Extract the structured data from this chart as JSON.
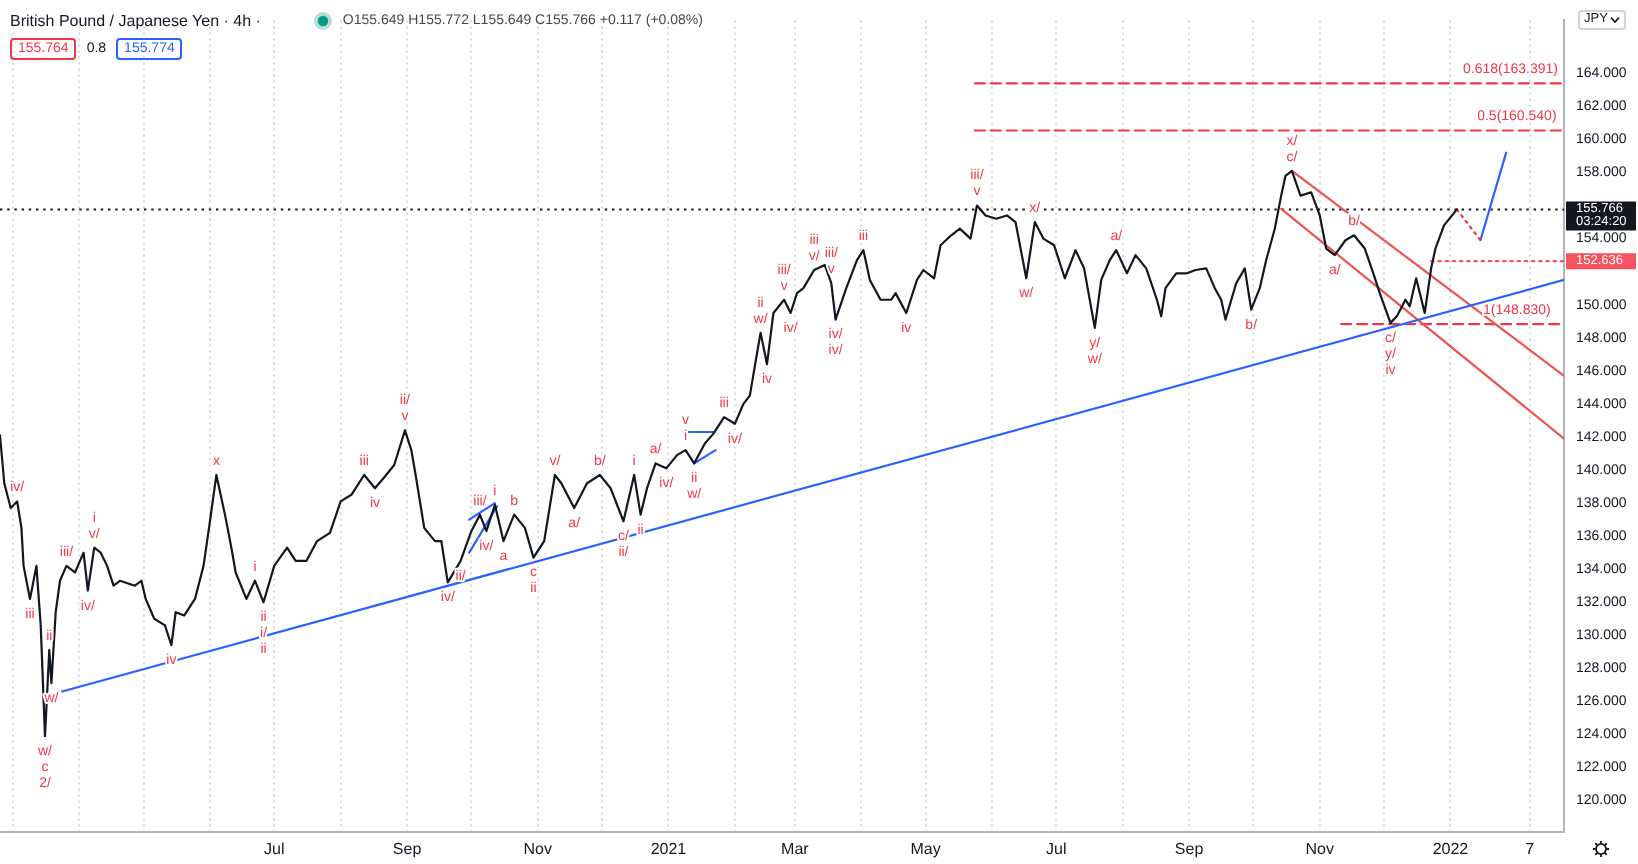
{
  "chart_data": {
    "type": "line",
    "title": "British Pound / Japanese Yen · 4h ·",
    "subtitle": "O155.649 H155.772 L155.649 C155.766 +0.117 (+0.08%)",
    "ylabel": "JPY",
    "grid": "x",
    "xlim": [
      "2020-02-24",
      "2022-02-23"
    ],
    "ylim": [
      118.1,
      167.2
    ],
    "xticks": [
      {
        "value": "2020-03-01",
        "label": null
      },
      {
        "value": "2020-04-01",
        "label": null
      },
      {
        "value": "2020-05-01",
        "label": null
      },
      {
        "value": "2020-06-01",
        "label": null
      },
      {
        "value": "2020-07-01",
        "label": "Jul"
      },
      {
        "value": "2020-08-01",
        "label": null
      },
      {
        "value": "2020-09-01",
        "label": "Sep"
      },
      {
        "value": "2020-10-01",
        "label": null
      },
      {
        "value": "2020-11-01",
        "label": "Nov"
      },
      {
        "value": "2020-12-01",
        "label": null
      },
      {
        "value": "2021-01-01",
        "label": "2021"
      },
      {
        "value": "2021-02-01",
        "label": null
      },
      {
        "value": "2021-03-01",
        "label": "Mar"
      },
      {
        "value": "2021-04-01",
        "label": null
      },
      {
        "value": "2021-05-01",
        "label": "May"
      },
      {
        "value": "2021-06-01",
        "label": null
      },
      {
        "value": "2021-07-01",
        "label": "Jul"
      },
      {
        "value": "2021-08-01",
        "label": null
      },
      {
        "value": "2021-09-01",
        "label": "Sep"
      },
      {
        "value": "2021-10-01",
        "label": null
      },
      {
        "value": "2021-11-01",
        "label": "Nov"
      },
      {
        "value": "2021-12-01",
        "label": null
      },
      {
        "value": "2022-01-01",
        "label": "2022"
      },
      {
        "value": "2022-02-07",
        "label": "7"
      }
    ],
    "yticks": [
      {
        "value": 120,
        "label": "120.000"
      },
      {
        "value": 122,
        "label": "122.000"
      },
      {
        "value": 124,
        "label": "124.000"
      },
      {
        "value": 126,
        "label": "126.000"
      },
      {
        "value": 128,
        "label": "128.000"
      },
      {
        "value": 130,
        "label": "130.000"
      },
      {
        "value": 132,
        "label": "132.000"
      },
      {
        "value": 134,
        "label": "134.000"
      },
      {
        "value": 136,
        "label": "136.000"
      },
      {
        "value": 138,
        "label": "138.000"
      },
      {
        "value": 140,
        "label": "140.000"
      },
      {
        "value": 142,
        "label": "142.000"
      },
      {
        "value": 144,
        "label": "144.000"
      },
      {
        "value": 146,
        "label": "146.000"
      },
      {
        "value": 148,
        "label": "148.000"
      },
      {
        "value": 150,
        "label": "150.000"
      },
      {
        "value": 154,
        "label": "154.000"
      },
      {
        "value": 158,
        "label": "158.000"
      },
      {
        "value": 160,
        "label": "160.000"
      },
      {
        "value": 162,
        "label": "162.000"
      },
      {
        "value": 164,
        "label": "164.000"
      }
    ],
    "series": [
      {
        "color": "#131722",
        "x": [
          "2020-02-24",
          "2020-02-26",
          "2020-02-29",
          "2020-03-03",
          "2020-03-05",
          "2020-03-06",
          "2020-03-09",
          "2020-03-12",
          "2020-03-14",
          "2020-03-16",
          "2020-03-18",
          "2020-03-19",
          "2020-03-21",
          "2020-03-23",
          "2020-03-26",
          "2020-03-30",
          "2020-04-03",
          "2020-04-05",
          "2020-04-08",
          "2020-04-11",
          "2020-04-14",
          "2020-04-17",
          "2020-04-20",
          "2020-04-27",
          "2020-04-30",
          "2020-05-02",
          "2020-05-06",
          "2020-05-11",
          "2020-05-14",
          "2020-05-16",
          "2020-05-20",
          "2020-05-25",
          "2020-05-29",
          "2020-06-01",
          "2020-06-04",
          "2020-06-08",
          "2020-06-11",
          "2020-06-13",
          "2020-06-18",
          "2020-06-22",
          "2020-06-26",
          "2020-07-01",
          "2020-07-07",
          "2020-07-11",
          "2020-07-16",
          "2020-07-21",
          "2020-07-27",
          "2020-08-01",
          "2020-08-06",
          "2020-08-12",
          "2020-08-17",
          "2020-08-21",
          "2020-08-26",
          "2020-08-31",
          "2020-09-03",
          "2020-09-05",
          "2020-09-09",
          "2020-09-14",
          "2020-09-17",
          "2020-09-20",
          "2020-09-26",
          "2020-10-01",
          "2020-10-05",
          "2020-10-08",
          "2020-10-12",
          "2020-10-16",
          "2020-10-21",
          "2020-10-26",
          "2020-10-30",
          "2020-11-04",
          "2020-11-09",
          "2020-11-12",
          "2020-11-18",
          "2020-11-24",
          "2020-11-30",
          "2020-12-05",
          "2020-12-11",
          "2020-12-16",
          "2020-12-19",
          "2020-12-22",
          "2020-12-26",
          "2020-12-31",
          "2021-01-05",
          "2021-01-09",
          "2021-01-13",
          "2021-01-18",
          "2021-01-22",
          "2021-01-27",
          "2021-02-01",
          "2021-02-05",
          "2021-02-08",
          "2021-02-11",
          "2021-02-13",
          "2021-02-16",
          "2021-02-19",
          "2021-02-24",
          "2021-02-27",
          "2021-03-02",
          "2021-03-05",
          "2021-03-10",
          "2021-03-15",
          "2021-03-18",
          "2021-03-20",
          "2021-03-25",
          "2021-03-30",
          "2021-04-02",
          "2021-04-05",
          "2021-04-10",
          "2021-04-15",
          "2021-04-17",
          "2021-04-22",
          "2021-04-27",
          "2021-04-30",
          "2021-05-05",
          "2021-05-08",
          "2021-05-13",
          "2021-05-17",
          "2021-05-22",
          "2021-05-25",
          "2021-05-29",
          "2021-06-03",
          "2021-06-08",
          "2021-06-12",
          "2021-06-17",
          "2021-06-21",
          "2021-06-25",
          "2021-06-30",
          "2021-07-05",
          "2021-07-10",
          "2021-07-14",
          "2021-07-19",
          "2021-07-22",
          "2021-07-26",
          "2021-07-29",
          "2021-08-03",
          "2021-08-07",
          "2021-08-12",
          "2021-08-17",
          "2021-08-19",
          "2021-08-21",
          "2021-08-26",
          "2021-08-31",
          "2021-09-04",
          "2021-09-09",
          "2021-09-13",
          "2021-09-16",
          "2021-09-18",
          "2021-09-23",
          "2021-09-27",
          "2021-09-30",
          "2021-10-04",
          "2021-10-07",
          "2021-10-11",
          "2021-10-14",
          "2021-10-16",
          "2021-10-19",
          "2021-10-23",
          "2021-10-28",
          "2021-11-01",
          "2021-11-04",
          "2021-11-08",
          "2021-11-13",
          "2021-11-17",
          "2021-11-22",
          "2021-11-26",
          "2021-11-29",
          "2021-12-04",
          "2021-12-07",
          "2021-12-11",
          "2021-12-13",
          "2021-12-16",
          "2021-12-20",
          "2021-12-23",
          "2021-12-25",
          "2021-12-29",
          "2022-01-04"
        ],
        "values": [
          142.1,
          139.2,
          137.7,
          138.1,
          136.5,
          134.2,
          132.2,
          134.2,
          130.6,
          123.9,
          129.1,
          127.1,
          131.4,
          133.3,
          134.2,
          133.8,
          135.0,
          132.7,
          135.3,
          135.0,
          134.2,
          133.0,
          133.3,
          133.0,
          133.3,
          132.2,
          131.0,
          130.6,
          129.4,
          131.4,
          131.2,
          132.2,
          134.2,
          136.9,
          139.7,
          137.3,
          135.3,
          133.8,
          132.2,
          133.3,
          132.0,
          134.2,
          135.3,
          134.5,
          134.5,
          135.7,
          136.2,
          138.1,
          138.5,
          139.7,
          138.9,
          139.5,
          140.3,
          142.4,
          141.2,
          139.7,
          136.5,
          135.7,
          135.7,
          133.2,
          134.5,
          136.3,
          137.3,
          136.3,
          137.9,
          135.7,
          137.3,
          136.5,
          134.7,
          135.7,
          139.7,
          139.2,
          137.7,
          139.2,
          139.7,
          138.9,
          136.9,
          139.7,
          137.3,
          138.9,
          140.4,
          140.1,
          140.9,
          141.2,
          140.4,
          141.6,
          142.2,
          143.2,
          142.8,
          144.0,
          144.5,
          146.8,
          148.3,
          146.4,
          149.5,
          150.3,
          149.5,
          150.7,
          151.0,
          152.1,
          152.4,
          151.3,
          149.1,
          151.0,
          152.7,
          153.3,
          151.5,
          150.3,
          150.3,
          150.7,
          149.5,
          151.5,
          152.1,
          151.6,
          153.6,
          154.2,
          154.6,
          154.0,
          156.0,
          155.4,
          155.2,
          155.4,
          155.0,
          151.6,
          155.0,
          154.0,
          153.6,
          151.6,
          153.3,
          152.2,
          148.6,
          151.5,
          152.7,
          153.3,
          151.9,
          153.0,
          152.2,
          150.3,
          149.3,
          151.0,
          151.9,
          151.9,
          152.1,
          152.2,
          151.0,
          150.3,
          149.1,
          151.3,
          152.2,
          149.7,
          151.0,
          152.7,
          154.6,
          156.6,
          157.8,
          158.1,
          156.6,
          156.8,
          155.4,
          153.4,
          153.0,
          153.9,
          154.2,
          153.4,
          151.9,
          150.7,
          148.9,
          149.3,
          150.3,
          149.9,
          151.6,
          149.5,
          152.2,
          153.4,
          154.8,
          155.766
        ]
      },
      {
        "color": "#2962ff",
        "x": [
          "2020-03-24",
          "2022-02-23"
        ],
        "values": [
          126.6,
          151.5
        ]
      },
      {
        "color": "#2962ff",
        "x": [
          "2020-09-30",
          "2020-10-12"
        ],
        "values": [
          137.0,
          138.0
        ]
      },
      {
        "color": "#2962ff",
        "x": [
          "2020-09-30",
          "2020-10-13"
        ],
        "values": [
          135.0,
          137.8
        ]
      },
      {
        "color": "#2962ff",
        "x": [
          "2021-01-09",
          "2021-01-22"
        ],
        "values": [
          142.3,
          142.3
        ]
      },
      {
        "color": "#2962ff",
        "x": [
          "2021-01-13",
          "2021-01-23"
        ],
        "values": [
          140.4,
          141.2
        ]
      },
      {
        "color": "#ef5350",
        "x": [
          "2021-10-19",
          "2022-02-23"
        ],
        "values": [
          158.1,
          145.7
        ]
      },
      {
        "color": "#ef5350",
        "x": [
          "2021-10-14",
          "2022-02-23"
        ],
        "values": [
          155.8,
          141.9
        ]
      },
      {
        "color": "#f23645",
        "line_style": "dashed",
        "x": [
          "2021-05-24",
          "2022-02-23"
        ],
        "values": [
          163.391,
          163.391
        ]
      },
      {
        "color": "#f23645",
        "line_style": "dashed",
        "x": [
          "2021-05-24",
          "2022-02-23"
        ],
        "values": [
          160.54,
          160.54
        ]
      },
      {
        "color": "#f23645",
        "line_style": "dashed",
        "x": [
          "2021-11-11",
          "2022-02-23"
        ],
        "values": [
          148.83,
          148.83
        ]
      },
      {
        "color": "#f7525f",
        "line_style": "dotted",
        "x": [
          "2021-12-23",
          "2022-02-23"
        ],
        "values": [
          152.636,
          152.636
        ]
      },
      {
        "color": "#f23645",
        "line_style": "dotted",
        "x": [
          "2022-01-04",
          "2022-01-15"
        ],
        "values": [
          155.766,
          153.9
        ]
      },
      {
        "color": "#2962ff",
        "x": [
          "2022-01-15",
          "2022-01-27"
        ],
        "values": [
          153.9,
          159.2
        ]
      }
    ],
    "ref_lines": [
      {
        "axis": "y",
        "value": 155.766,
        "label": "155.766",
        "color": "#131722",
        "line_style": "dotted"
      }
    ],
    "annotations": [
      "155.764",
      "0.8",
      "155.774",
      "03:24:20",
      {
        "text": "0.618(163.391)",
        "x": "2022-02-01",
        "y": 163.391
      },
      {
        "text": "0.5(160.540)",
        "x": "2022-02-01",
        "y": 160.54
      },
      {
        "text": "1(148.830)",
        "x": "2022-02-01",
        "y": 148.83
      },
      {
        "text": "152.636",
        "x": "2022-02-23",
        "y": 152.636
      },
      {
        "text": "iv/",
        "x": "2020-03-03",
        "y": 138.1
      },
      {
        "text": "iii",
        "x": "2020-03-09",
        "y": 132.2
      },
      {
        "text": "ii",
        "x": "2020-03-18",
        "y": 129.1
      },
      {
        "text": "w/",
        "x": "2020-03-16",
        "y": 123.9
      },
      {
        "text": "c",
        "x": "2020-03-16",
        "y": 123.9
      },
      {
        "text": "2/",
        "x": "2020-03-16",
        "y": 123.9
      },
      {
        "text": "w/",
        "x": "2020-03-19",
        "y": 127.1
      },
      {
        "text": "iii/",
        "x": "2020-03-26",
        "y": 134.2
      },
      {
        "text": "v/",
        "x": "2020-04-08",
        "y": 135.3
      },
      {
        "text": "i",
        "x": "2020-04-08",
        "y": 135.3
      },
      {
        "text": "iv/",
        "x": "2020-04-05",
        "y": 132.7
      },
      {
        "text": "iv",
        "x": "2020-05-14",
        "y": 129.4
      },
      {
        "text": "x",
        "x": "2020-06-04",
        "y": 139.7
      },
      {
        "text": "i",
        "x": "2020-06-22",
        "y": 133.3
      },
      {
        "text": "ii",
        "x": "2020-06-26",
        "y": 132.0
      },
      {
        "text": "i/",
        "x": "2020-06-26",
        "y": 132.0
      },
      {
        "text": "ii",
        "x": "2020-06-26",
        "y": 132.0
      },
      {
        "text": "iii",
        "x": "2020-08-12",
        "y": 139.7
      },
      {
        "text": "iv",
        "x": "2020-08-17",
        "y": 138.9
      },
      {
        "text": "v",
        "x": "2020-08-31",
        "y": 142.4
      },
      {
        "text": "ii/",
        "x": "2020-08-31",
        "y": 142.4
      },
      {
        "text": "iv/",
        "x": "2020-09-20",
        "y": 133.2
      },
      {
        "text": "ii/",
        "x": "2020-09-26",
        "y": 134.5
      },
      {
        "text": "iii/",
        "x": "2020-10-05",
        "y": 137.3
      },
      {
        "text": "iv/",
        "x": "2020-10-08",
        "y": 136.3
      },
      {
        "text": "i",
        "x": "2020-10-12",
        "y": 137.9
      },
      {
        "text": "a",
        "x": "2020-10-16",
        "y": 135.7
      },
      {
        "text": "b",
        "x": "2020-10-21",
        "y": 137.3
      },
      {
        "text": "c",
        "x": "2020-10-30",
        "y": 134.7
      },
      {
        "text": "ii",
        "x": "2020-10-30",
        "y": 134.7
      },
      {
        "text": "v/",
        "x": "2020-11-09",
        "y": 139.7
      },
      {
        "text": "a/",
        "x": "2020-11-18",
        "y": 137.7
      },
      {
        "text": "b/",
        "x": "2020-11-30",
        "y": 139.7
      },
      {
        "text": "c/",
        "x": "2020-12-11",
        "y": 136.9
      },
      {
        "text": "ii/",
        "x": "2020-12-11",
        "y": 136.9
      },
      {
        "text": "i",
        "x": "2020-12-16",
        "y": 139.7
      },
      {
        "text": "ii",
        "x": "2020-12-19",
        "y": 137.3
      },
      {
        "text": "a/",
        "x": "2020-12-26",
        "y": 140.4
      },
      {
        "text": "iv/",
        "x": "2020-12-31",
        "y": 140.1
      },
      {
        "text": "i",
        "x": "2021-01-09",
        "y": 141.2
      },
      {
        "text": "v",
        "x": "2021-01-09",
        "y": 141.2
      },
      {
        "text": "ii",
        "x": "2021-01-13",
        "y": 140.4
      },
      {
        "text": "w/",
        "x": "2021-01-13",
        "y": 140.4
      },
      {
        "text": "iii",
        "x": "2021-01-27",
        "y": 143.2
      },
      {
        "text": "iv/",
        "x": "2021-02-01",
        "y": 142.8
      },
      {
        "text": "w/",
        "x": "2021-02-13",
        "y": 148.3
      },
      {
        "text": "ii",
        "x": "2021-02-13",
        "y": 148.3
      },
      {
        "text": "iv",
        "x": "2021-02-16",
        "y": 146.4
      },
      {
        "text": "v",
        "x": "2021-02-24",
        "y": 150.3
      },
      {
        "text": "iii/",
        "x": "2021-02-24",
        "y": 150.3
      },
      {
        "text": "iv/",
        "x": "2021-02-27",
        "y": 149.5
      },
      {
        "text": "v/",
        "x": "2021-03-10",
        "y": 152.1
      },
      {
        "text": "iii",
        "x": "2021-03-10",
        "y": 152.1
      },
      {
        "text": "v",
        "x": "2021-03-18",
        "y": 151.3
      },
      {
        "text": "iii/",
        "x": "2021-03-18",
        "y": 151.3
      },
      {
        "text": "iv/",
        "x": "2021-03-20",
        "y": 149.1
      },
      {
        "text": "iv/",
        "x": "2021-03-20",
        "y": 149.1
      },
      {
        "text": "iii",
        "x": "2021-04-02",
        "y": 153.3
      },
      {
        "text": "iv",
        "x": "2021-04-22",
        "y": 149.5
      },
      {
        "text": "v",
        "x": "2021-05-25",
        "y": 156.0
      },
      {
        "text": "iii/",
        "x": "2021-05-25",
        "y": 156.0
      },
      {
        "text": "w/",
        "x": "2021-06-17",
        "y": 151.6
      },
      {
        "text": "x/",
        "x": "2021-06-21",
        "y": 155.0
      },
      {
        "text": "y/",
        "x": "2021-07-19",
        "y": 148.6
      },
      {
        "text": "w/",
        "x": "2021-07-19",
        "y": 148.6
      },
      {
        "text": "a/",
        "x": "2021-07-29",
        "y": 153.3
      },
      {
        "text": "b/",
        "x": "2021-09-30",
        "y": 149.7
      },
      {
        "text": "c/",
        "x": "2021-10-19",
        "y": 158.1
      },
      {
        "text": "x/",
        "x": "2021-10-19",
        "y": 158.1
      },
      {
        "text": "a/",
        "x": "2021-11-08",
        "y": 153.0
      },
      {
        "text": "b/",
        "x": "2021-11-17",
        "y": 154.2
      },
      {
        "text": "c/",
        "x": "2021-12-04",
        "y": 148.9
      },
      {
        "text": "y/",
        "x": "2021-12-04",
        "y": 148.9
      },
      {
        "text": "iv",
        "x": "2021-12-04",
        "y": 148.9
      }
    ]
  }
}
